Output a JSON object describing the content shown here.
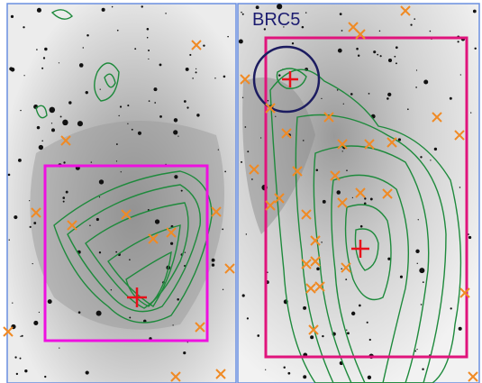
{
  "image": {
    "label": "BRC5"
  }
}
